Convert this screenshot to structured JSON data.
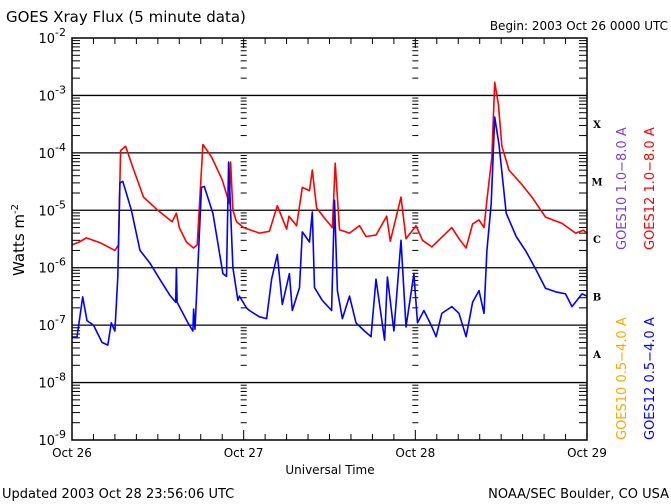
{
  "header": {
    "title": "GOES Xray Flux (5 minute data)",
    "begin": "Begin:  2003 Oct 26 0000 UTC"
  },
  "footer": {
    "updated": "Updated 2003 Oct 28 23:56:06 UTC",
    "credit": "NOAA/SEC Boulder, CO USA"
  },
  "chart_data": {
    "type": "line",
    "title": "GOES Xray Flux (5 minute data)",
    "xlabel": "Universal Time",
    "ylabel": "Watts m",
    "ylabel_exponent": "-2",
    "y_scale": "log",
    "ylim": [
      1e-09,
      0.01
    ],
    "xlim": [
      "2003-10-26 00:00",
      "2003-10-29 00:00"
    ],
    "x_ticks": [
      {
        "date": "10-26 00:00",
        "label": "Oct 26"
      },
      {
        "date": "10-27 00:00",
        "label": "Oct 27"
      },
      {
        "date": "10-28 00:00",
        "label": "Oct 28"
      },
      {
        "date": "10-29 00:00",
        "label": "Oct 29"
      }
    ],
    "y_ticks": [
      {
        "base": "10",
        "exp": "-2"
      },
      {
        "base": "10",
        "exp": "-3"
      },
      {
        "base": "10",
        "exp": "-4"
      },
      {
        "base": "10",
        "exp": "-5"
      },
      {
        "base": "10",
        "exp": "-6"
      },
      {
        "base": "10",
        "exp": "-7"
      },
      {
        "base": "10",
        "exp": "-8"
      },
      {
        "base": "10",
        "exp": "-9"
      }
    ],
    "grid": "horizontal at each decade",
    "flare_classes": [
      "X",
      "M",
      "C",
      "B",
      "A"
    ],
    "legend_placement": "right, vertical",
    "legend": [
      {
        "name": "GOES10 1.0−8.0 A",
        "color": "#7a3fc9"
      },
      {
        "name": "GOES12 1.0−8.0 A",
        "color": "#ff0000"
      },
      {
        "name": "GOES10 0.5−4.0 A",
        "color": "#ffa500"
      },
      {
        "name": "GOES12 0.5−4.0 A",
        "color": "#0000ff"
      }
    ],
    "series": [
      {
        "name": "GOES12 1.0−8.0 A",
        "color": "#ff0000",
        "points": [
          [
            "10-26 00:00",
            2.5e-06
          ],
          [
            "10-26 01:00",
            2.8e-06
          ],
          [
            "10-26 02:00",
            3.3e-06
          ],
          [
            "10-26 04:00",
            2.7e-06
          ],
          [
            "10-26 06:00",
            2e-06
          ],
          [
            "10-26 06:30",
            2.5e-06
          ],
          [
            "10-26 06:48",
            0.00011
          ],
          [
            "10-26 07:30",
            0.00013
          ],
          [
            "10-26 08:30",
            5.6e-05
          ],
          [
            "10-26 10:00",
            1.7e-05
          ],
          [
            "10-26 12:00",
            1e-05
          ],
          [
            "10-26 14:00",
            6.3e-06
          ],
          [
            "10-26 14:36",
            8.9e-06
          ],
          [
            "10-26 15:00",
            5e-06
          ],
          [
            "10-26 16:00",
            2.8e-06
          ],
          [
            "10-26 17:00",
            2.2e-06
          ],
          [
            "10-26 17:30",
            2.5e-06
          ],
          [
            "10-26 18:18",
            0.00014
          ],
          [
            "10-26 19:30",
            8.5e-05
          ],
          [
            "10-26 21:00",
            3.4e-05
          ],
          [
            "10-26 22:00",
            1.3e-05
          ],
          [
            "10-26 22:10",
            6.9e-05
          ],
          [
            "10-26 22:30",
            1e-05
          ],
          [
            "10-26 23:00",
            6.3e-06
          ],
          [
            "10-27 00:00",
            5e-06
          ],
          [
            "10-27 02:12",
            4e-06
          ],
          [
            "10-27 03:36",
            4.3e-06
          ],
          [
            "10-27 04:42",
            1.2e-05
          ],
          [
            "10-27 06:00",
            4.7e-06
          ],
          [
            "10-27 06:20",
            7.9e-06
          ],
          [
            "10-27 07:24",
            5.4e-06
          ],
          [
            "10-27 08:12",
            2.5e-05
          ],
          [
            "10-27 09:12",
            2.2e-05
          ],
          [
            "10-27 09:36",
            5e-05
          ],
          [
            "10-27 10:12",
            1.1e-05
          ],
          [
            "10-27 11:30",
            6.8e-06
          ],
          [
            "10-27 12:24",
            5e-06
          ],
          [
            "10-27 12:48",
            6.6e-05
          ],
          [
            "10-27 13:24",
            4.6e-06
          ],
          [
            "10-27 14:48",
            4e-06
          ],
          [
            "10-27 16:12",
            5.4e-06
          ],
          [
            "10-27 17:06",
            3.5e-06
          ],
          [
            "10-27 18:30",
            3.7e-06
          ],
          [
            "10-27 20:00",
            7.9e-06
          ],
          [
            "10-27 20:30",
            2.9e-06
          ],
          [
            "10-27 22:00",
            1.7e-05
          ],
          [
            "10-27 22:42",
            3.2e-06
          ],
          [
            "10-28 00:06",
            5.4e-06
          ],
          [
            "10-28 01:00",
            3e-06
          ],
          [
            "10-28 02:18",
            2.3e-06
          ],
          [
            "10-28 04:18",
            4e-06
          ],
          [
            "10-28 05:06",
            5e-06
          ],
          [
            "10-28 06:06",
            3.2e-06
          ],
          [
            "10-28 07:06",
            2.2e-06
          ],
          [
            "10-28 08:00",
            5.8e-06
          ],
          [
            "10-28 08:54",
            6.8e-06
          ],
          [
            "10-28 09:36",
            5e-06
          ],
          [
            "10-28 10:00",
            1.5e-05
          ],
          [
            "10-28 10:42",
            8.5e-05
          ],
          [
            "10-28 11:06",
            0.0017
          ],
          [
            "10-28 11:36",
            0.00072
          ],
          [
            "10-28 12:06",
            0.00013
          ],
          [
            "10-28 13:06",
            5e-05
          ],
          [
            "10-28 14:54",
            2.8e-05
          ],
          [
            "10-28 16:18",
            1.7e-05
          ],
          [
            "10-28 18:12",
            7.6e-06
          ],
          [
            "10-28 20:30",
            5.9e-06
          ],
          [
            "10-28 22:24",
            4e-06
          ],
          [
            "10-28 23:30",
            4.5e-06
          ],
          [
            "10-29 00:00",
            4e-06
          ]
        ]
      },
      {
        "name": "GOES12 0.5−4.0 A",
        "color": "#0000ff",
        "points": [
          [
            "10-26 00:00",
            6.2e-08
          ],
          [
            "10-26 00:42",
            6.2e-08
          ],
          [
            "10-26 01:30",
            3.1e-07
          ],
          [
            "10-26 02:06",
            1.2e-07
          ],
          [
            "10-26 03:00",
            1e-07
          ],
          [
            "10-26 04:12",
            5e-08
          ],
          [
            "10-26 05:00",
            4.5e-08
          ],
          [
            "10-26 05:30",
            1.1e-07
          ],
          [
            "10-26 06:00",
            7.9e-08
          ],
          [
            "10-26 06:24",
            6.9e-07
          ],
          [
            "10-26 06:42",
            3e-05
          ],
          [
            "10-26 07:06",
            3.2e-05
          ],
          [
            "10-26 08:18",
            1e-05
          ],
          [
            "10-26 09:30",
            2e-06
          ],
          [
            "10-26 10:54",
            1.2e-06
          ],
          [
            "10-26 12:18",
            6.2e-07
          ],
          [
            "10-26 13:42",
            3.3e-07
          ],
          [
            "10-26 14:30",
            2.5e-07
          ],
          [
            "10-26 14:36",
            1e-06
          ],
          [
            "10-26 14:42",
            2.5e-07
          ],
          [
            "10-26 16:12",
            1.1e-07
          ],
          [
            "10-26 16:54",
            7.9e-08
          ],
          [
            "10-26 17:00",
            1.9e-07
          ],
          [
            "10-26 17:12",
            8.5e-08
          ],
          [
            "10-26 18:06",
            2.5e-05
          ],
          [
            "10-26 18:30",
            2.6e-05
          ],
          [
            "10-26 19:42",
            8.9e-06
          ],
          [
            "10-26 21:06",
            7.9e-07
          ],
          [
            "10-26 21:36",
            7.1e-07
          ],
          [
            "10-26 21:54",
            6.9e-05
          ],
          [
            "10-26 22:30",
            1e-06
          ],
          [
            "10-26 23:12",
            2.7e-07
          ],
          [
            "10-26 23:24",
            3.2e-07
          ],
          [
            "10-27 00:24",
            2e-07
          ],
          [
            "10-27 00:48",
            1.8e-07
          ],
          [
            "10-27 02:12",
            1.4e-07
          ],
          [
            "10-27 03:12",
            1.3e-07
          ],
          [
            "10-27 03:54",
            6.3e-07
          ],
          [
            "10-27 04:42",
            1.7e-06
          ],
          [
            "10-27 05:24",
            2.3e-07
          ],
          [
            "10-27 06:24",
            7.9e-07
          ],
          [
            "10-27 06:48",
            1.8e-07
          ],
          [
            "10-27 07:48",
            4.5e-07
          ],
          [
            "10-27 08:12",
            4.2e-06
          ],
          [
            "10-27 09:12",
            2.8e-06
          ],
          [
            "10-27 09:36",
            9.3e-06
          ],
          [
            "10-27 09:54",
            4.5e-07
          ],
          [
            "10-27 11:00",
            2.7e-07
          ],
          [
            "10-27 12:18",
            1.8e-07
          ],
          [
            "10-27 12:42",
            1.5e-05
          ],
          [
            "10-27 13:06",
            4e-07
          ],
          [
            "10-27 13:48",
            1.3e-07
          ],
          [
            "10-27 14:48",
            3.2e-07
          ],
          [
            "10-27 15:42",
            1.1e-07
          ],
          [
            "10-27 16:54",
            7.9e-08
          ],
          [
            "10-27 17:48",
            6.3e-08
          ],
          [
            "10-27 18:30",
            6.3e-07
          ],
          [
            "10-27 19:42",
            5.5e-08
          ],
          [
            "10-27 20:06",
            6.9e-07
          ],
          [
            "10-27 21:00",
            7.9e-08
          ],
          [
            "10-27 22:00",
            3e-06
          ],
          [
            "10-27 22:42",
            9.3e-08
          ],
          [
            "10-27 23:48",
            7.9e-07
          ],
          [
            "10-28 00:18",
            1.1e-07
          ],
          [
            "10-28 01:12",
            1.8e-07
          ],
          [
            "10-28 02:12",
            1e-07
          ],
          [
            "10-28 02:54",
            6.3e-08
          ],
          [
            "10-28 03:42",
            1.6e-07
          ],
          [
            "10-28 05:06",
            2.1e-07
          ],
          [
            "10-28 06:06",
            1.6e-07
          ],
          [
            "10-28 07:06",
            6.3e-08
          ],
          [
            "10-28 08:00",
            2.5e-07
          ],
          [
            "10-28 08:54",
            4e-07
          ],
          [
            "10-28 09:36",
            1.6e-07
          ],
          [
            "10-28 10:00",
            2e-06
          ],
          [
            "10-28 10:36",
            1.3e-05
          ],
          [
            "10-28 11:06",
            0.00042
          ],
          [
            "10-28 11:42",
            0.00014
          ],
          [
            "10-28 12:42",
            8.9e-06
          ],
          [
            "10-28 14:06",
            3.5e-06
          ],
          [
            "10-28 15:30",
            1.9e-06
          ],
          [
            "10-28 16:54",
            9.1e-07
          ],
          [
            "10-28 18:12",
            4.4e-07
          ],
          [
            "10-28 19:36",
            3.8e-07
          ],
          [
            "10-28 21:00",
            3.5e-07
          ],
          [
            "10-28 21:54",
            2.1e-07
          ],
          [
            "10-28 23:18",
            3.5e-07
          ],
          [
            "10-29 00:00",
            3.2e-07
          ]
        ]
      }
    ]
  }
}
